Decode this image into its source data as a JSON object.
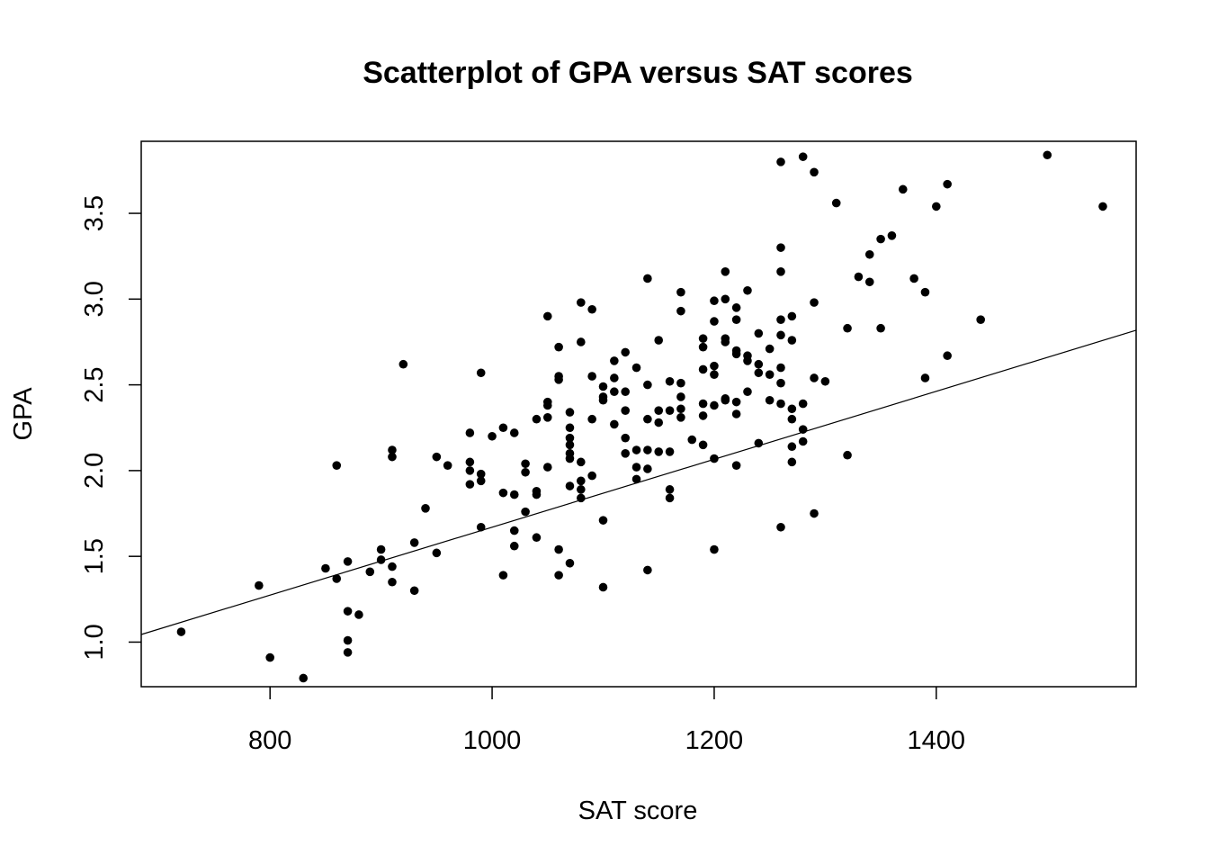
{
  "chart_data": {
    "type": "scatter",
    "title": "Scatterplot of GPA versus SAT scores",
    "xlabel": "SAT score",
    "ylabel": "GPA",
    "xlim": [
      684,
      1580
    ],
    "ylim": [
      0.74,
      3.92
    ],
    "xticks": [
      800,
      1000,
      1200,
      1400
    ],
    "xtick_labels": [
      "800",
      "1000",
      "1200",
      "1400"
    ],
    "yticks": [
      1.0,
      1.5,
      2.0,
      2.5,
      3.0,
      3.5
    ],
    "ytick_labels": [
      "1.0",
      "1.5",
      "2.0",
      "2.5",
      "3.0",
      "3.5"
    ],
    "grid": false,
    "point_color": "#000000",
    "fit_line": {
      "intercept": -0.31,
      "slope": 0.00198
    },
    "points": [
      [
        720,
        1.06
      ],
      [
        790,
        1.33
      ],
      [
        800,
        0.91
      ],
      [
        830,
        0.79
      ],
      [
        850,
        1.43
      ],
      [
        860,
        2.03
      ],
      [
        860,
        1.37
      ],
      [
        870,
        1.47
      ],
      [
        870,
        1.18
      ],
      [
        870,
        1.01
      ],
      [
        870,
        0.94
      ],
      [
        880,
        1.16
      ],
      [
        890,
        1.41
      ],
      [
        900,
        1.54
      ],
      [
        900,
        1.48
      ],
      [
        910,
        2.12
      ],
      [
        910,
        2.08
      ],
      [
        910,
        1.44
      ],
      [
        910,
        1.35
      ],
      [
        920,
        2.62
      ],
      [
        930,
        1.58
      ],
      [
        930,
        1.3
      ],
      [
        940,
        1.78
      ],
      [
        950,
        2.08
      ],
      [
        950,
        1.52
      ],
      [
        960,
        2.03
      ],
      [
        980,
        2.22
      ],
      [
        980,
        2.05
      ],
      [
        980,
        2.0
      ],
      [
        980,
        1.92
      ],
      [
        990,
        2.57
      ],
      [
        990,
        1.98
      ],
      [
        990,
        1.94
      ],
      [
        990,
        1.67
      ],
      [
        1000,
        2.2
      ],
      [
        1010,
        2.25
      ],
      [
        1010,
        1.87
      ],
      [
        1010,
        1.39
      ],
      [
        1020,
        2.22
      ],
      [
        1020,
        1.86
      ],
      [
        1020,
        1.65
      ],
      [
        1020,
        1.56
      ],
      [
        1030,
        2.04
      ],
      [
        1030,
        1.99
      ],
      [
        1030,
        1.76
      ],
      [
        1040,
        2.3
      ],
      [
        1040,
        1.88
      ],
      [
        1040,
        1.86
      ],
      [
        1040,
        1.61
      ],
      [
        1050,
        2.9
      ],
      [
        1050,
        2.4
      ],
      [
        1050,
        2.38
      ],
      [
        1050,
        2.31
      ],
      [
        1050,
        2.02
      ],
      [
        1060,
        2.72
      ],
      [
        1060,
        2.55
      ],
      [
        1060,
        2.53
      ],
      [
        1060,
        1.54
      ],
      [
        1060,
        1.39
      ],
      [
        1070,
        2.34
      ],
      [
        1070,
        2.25
      ],
      [
        1070,
        2.19
      ],
      [
        1070,
        2.15
      ],
      [
        1070,
        2.1
      ],
      [
        1070,
        2.07
      ],
      [
        1070,
        1.91
      ],
      [
        1070,
        1.46
      ],
      [
        1080,
        2.98
      ],
      [
        1080,
        2.75
      ],
      [
        1080,
        2.05
      ],
      [
        1080,
        1.94
      ],
      [
        1080,
        1.89
      ],
      [
        1080,
        1.84
      ],
      [
        1090,
        2.94
      ],
      [
        1090,
        2.55
      ],
      [
        1090,
        2.3
      ],
      [
        1090,
        1.97
      ],
      [
        1100,
        2.49
      ],
      [
        1100,
        2.43
      ],
      [
        1100,
        2.41
      ],
      [
        1100,
        1.71
      ],
      [
        1100,
        1.32
      ],
      [
        1110,
        2.64
      ],
      [
        1110,
        2.54
      ],
      [
        1110,
        2.46
      ],
      [
        1110,
        2.27
      ],
      [
        1120,
        2.69
      ],
      [
        1120,
        2.46
      ],
      [
        1120,
        2.35
      ],
      [
        1120,
        2.19
      ],
      [
        1120,
        2.1
      ],
      [
        1130,
        2.6
      ],
      [
        1130,
        2.12
      ],
      [
        1130,
        2.02
      ],
      [
        1130,
        1.95
      ],
      [
        1140,
        3.12
      ],
      [
        1140,
        2.5
      ],
      [
        1140,
        2.3
      ],
      [
        1140,
        2.12
      ],
      [
        1140,
        2.01
      ],
      [
        1140,
        1.42
      ],
      [
        1150,
        2.76
      ],
      [
        1150,
        2.35
      ],
      [
        1150,
        2.28
      ],
      [
        1150,
        2.11
      ],
      [
        1160,
        2.52
      ],
      [
        1160,
        2.35
      ],
      [
        1160,
        2.11
      ],
      [
        1160,
        1.89
      ],
      [
        1160,
        1.84
      ],
      [
        1170,
        3.04
      ],
      [
        1170,
        2.93
      ],
      [
        1170,
        2.51
      ],
      [
        1170,
        2.43
      ],
      [
        1170,
        2.36
      ],
      [
        1170,
        2.31
      ],
      [
        1180,
        2.18
      ],
      [
        1190,
        2.77
      ],
      [
        1190,
        2.72
      ],
      [
        1190,
        2.59
      ],
      [
        1190,
        2.39
      ],
      [
        1190,
        2.32
      ],
      [
        1190,
        2.15
      ],
      [
        1200,
        2.99
      ],
      [
        1200,
        2.87
      ],
      [
        1200,
        2.61
      ],
      [
        1200,
        2.56
      ],
      [
        1200,
        2.38
      ],
      [
        1200,
        2.07
      ],
      [
        1200,
        1.54
      ],
      [
        1210,
        3.16
      ],
      [
        1210,
        3.0
      ],
      [
        1210,
        2.77
      ],
      [
        1210,
        2.75
      ],
      [
        1210,
        2.42
      ],
      [
        1210,
        2.41
      ],
      [
        1220,
        2.95
      ],
      [
        1220,
        2.88
      ],
      [
        1220,
        2.7
      ],
      [
        1220,
        2.68
      ],
      [
        1220,
        2.4
      ],
      [
        1220,
        2.33
      ],
      [
        1220,
        2.03
      ],
      [
        1230,
        3.05
      ],
      [
        1230,
        2.67
      ],
      [
        1230,
        2.64
      ],
      [
        1230,
        2.46
      ],
      [
        1240,
        2.8
      ],
      [
        1240,
        2.62
      ],
      [
        1240,
        2.57
      ],
      [
        1240,
        2.16
      ],
      [
        1250,
        2.71
      ],
      [
        1250,
        2.56
      ],
      [
        1250,
        2.41
      ],
      [
        1260,
        3.8
      ],
      [
        1260,
        3.3
      ],
      [
        1260,
        3.16
      ],
      [
        1260,
        2.88
      ],
      [
        1260,
        2.79
      ],
      [
        1260,
        2.6
      ],
      [
        1260,
        2.51
      ],
      [
        1260,
        2.39
      ],
      [
        1260,
        1.67
      ],
      [
        1270,
        2.9
      ],
      [
        1270,
        2.76
      ],
      [
        1270,
        2.36
      ],
      [
        1270,
        2.3
      ],
      [
        1270,
        2.14
      ],
      [
        1270,
        2.05
      ],
      [
        1280,
        3.83
      ],
      [
        1280,
        2.39
      ],
      [
        1280,
        2.24
      ],
      [
        1280,
        2.17
      ],
      [
        1290,
        3.74
      ],
      [
        1290,
        2.98
      ],
      [
        1290,
        2.54
      ],
      [
        1290,
        1.75
      ],
      [
        1300,
        2.52
      ],
      [
        1310,
        3.56
      ],
      [
        1320,
        2.83
      ],
      [
        1320,
        2.09
      ],
      [
        1330,
        3.13
      ],
      [
        1340,
        3.26
      ],
      [
        1340,
        3.1
      ],
      [
        1350,
        3.35
      ],
      [
        1350,
        2.83
      ],
      [
        1360,
        3.37
      ],
      [
        1370,
        3.64
      ],
      [
        1380,
        3.12
      ],
      [
        1390,
        3.04
      ],
      [
        1390,
        2.54
      ],
      [
        1400,
        3.54
      ],
      [
        1410,
        3.67
      ],
      [
        1410,
        2.67
      ],
      [
        1440,
        2.88
      ],
      [
        1500,
        3.84
      ],
      [
        1550,
        3.54
      ]
    ]
  }
}
